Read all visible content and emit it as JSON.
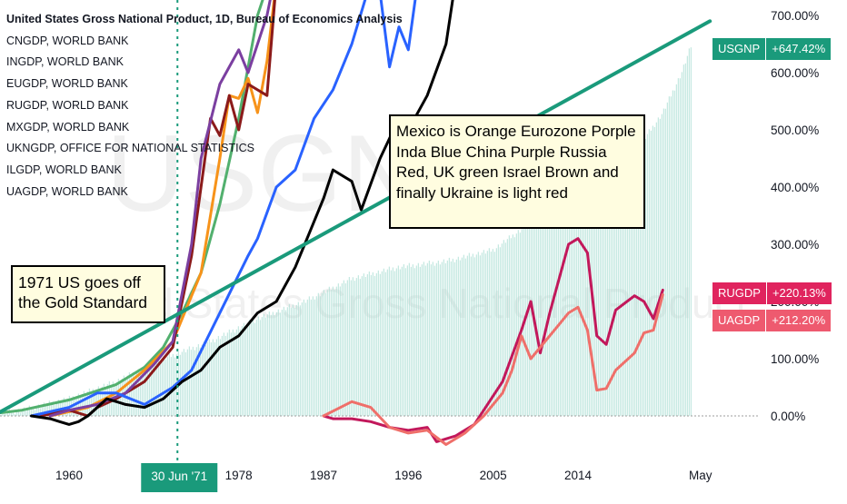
{
  "chart_data": {
    "type": "line",
    "title": "United States Gross National Product, 1D, Bureau of Economics Analysis",
    "legend_items": [
      "CNGDP, WORLD BANK",
      "INGDP, WORLD BANK",
      "EUGDP, WORLD BANK",
      "RUGDP, WORLD BANK",
      "MXGDP, WORLD BANK",
      "UKNGDP, OFFICE FOR NATIONAL STATISTICS",
      "ILGDP, WORLD BANK",
      "UAGDP, WORLD BANK"
    ],
    "legend_placement": "top-left",
    "watermark": "USGNP",
    "watermark2": "United States Gross National Product",
    "x_range": [
      1950,
      2031
    ],
    "y_range": [
      -75,
      750
    ],
    "y_ticks": [
      {
        "value": 0,
        "label": "0.00%"
      },
      {
        "value": 100,
        "label": "100.00%"
      },
      {
        "value": 200,
        "label": "200.00%"
      },
      {
        "value": 300,
        "label": "300.00%"
      },
      {
        "value": 400,
        "label": "400.00%"
      },
      {
        "value": 500,
        "label": "500.00%"
      },
      {
        "value": 600,
        "label": "600.00%"
      },
      {
        "value": 700,
        "label": "700.00%"
      }
    ],
    "x_ticks": [
      {
        "value": 1960,
        "label": "1960"
      },
      {
        "value": 1978,
        "label": "1978"
      },
      {
        "value": 1987,
        "label": "1987"
      },
      {
        "value": 1996,
        "label": "1996"
      },
      {
        "value": 2005,
        "label": "2005"
      },
      {
        "value": 2014,
        "label": "2014"
      },
      {
        "value": 2027,
        "label": "May"
      }
    ],
    "crosshair": {
      "x": 1971.5,
      "label": "30 Jun '71"
    },
    "annotations": [
      {
        "id": "note1",
        "text": "1971  US goes off\nthe Gold Standard"
      },
      {
        "id": "note2",
        "text": "Mexico is Orange Eurozone Porple\nInda Blue  China Purple Russia\nRed, UK green Israel Brown and\nfinally Ukraine is light red"
      }
    ],
    "trendline": {
      "color": "#1a9a7b",
      "points": [
        [
          1950,
          -3
        ],
        [
          2028,
          690
        ]
      ]
    },
    "badges": [
      {
        "name": "USGNP",
        "value": "+647.42%",
        "color": "#1a9a7b",
        "y": 647.42
      },
      {
        "name": "RUGDP",
        "value": "+220.13%",
        "color": "#e0245e",
        "y": 220.13
      },
      {
        "name": "UAGDP",
        "value": "+212.20%",
        "color": "#ee5a6f",
        "y": 175
      }
    ],
    "usgnp_area": {
      "color": "#9fd9cd",
      "points": [
        [
          1950,
          0
        ],
        [
          1955,
          10
        ],
        [
          1960,
          30
        ],
        [
          1965,
          60
        ],
        [
          1970,
          100
        ],
        [
          1975,
          130
        ],
        [
          1980,
          170
        ],
        [
          1985,
          200
        ],
        [
          1990,
          240
        ],
        [
          1995,
          260
        ],
        [
          2000,
          270
        ],
        [
          2005,
          290
        ],
        [
          2010,
          350
        ],
        [
          2015,
          400
        ],
        [
          2020,
          460
        ],
        [
          2023,
          530
        ],
        [
          2025,
          600
        ],
        [
          2026,
          647
        ]
      ]
    },
    "series": [
      {
        "name": "UKNGDP",
        "color": "#52b06e",
        "values": [
          [
            1950,
            0
          ],
          [
            1955,
            10
          ],
          [
            1960,
            28
          ],
          [
            1965,
            55
          ],
          [
            1968,
            85
          ],
          [
            1970,
            120
          ],
          [
            1972,
            180
          ],
          [
            1974,
            250
          ],
          [
            1976,
            370
          ],
          [
            1978,
            520
          ],
          [
            1980,
            700
          ],
          [
            1982,
            800
          ]
        ]
      },
      {
        "name": "MXGDP",
        "color": "#f7931a",
        "values": [
          [
            1958,
            0
          ],
          [
            1962,
            15
          ],
          [
            1965,
            40
          ],
          [
            1968,
            80
          ],
          [
            1971,
            130
          ],
          [
            1974,
            250
          ],
          [
            1976,
            450
          ],
          [
            1977,
            560
          ],
          [
            1978,
            555
          ],
          [
            1979,
            590
          ],
          [
            1980,
            530
          ],
          [
            1981,
            620
          ],
          [
            1982,
            760
          ]
        ]
      },
      {
        "name": "ILGDP",
        "color": "#8b1a1a",
        "values": [
          [
            1957,
            0
          ],
          [
            1960,
            10
          ],
          [
            1962,
            0
          ],
          [
            1963,
            15
          ],
          [
            1965,
            30
          ],
          [
            1968,
            60
          ],
          [
            1971,
            120
          ],
          [
            1973,
            280
          ],
          [
            1975,
            520
          ],
          [
            1976,
            490
          ],
          [
            1977,
            560
          ],
          [
            1978,
            500
          ],
          [
            1979,
            580
          ],
          [
            1981,
            560
          ],
          [
            1982,
            760
          ]
        ]
      },
      {
        "name": "CNGDP",
        "color": "#7b3fa0",
        "values": [
          [
            1958,
            0
          ],
          [
            1960,
            10
          ],
          [
            1963,
            20
          ],
          [
            1966,
            40
          ],
          [
            1969,
            90
          ],
          [
            1971,
            130
          ],
          [
            1973,
            300
          ],
          [
            1974,
            450
          ],
          [
            1976,
            580
          ],
          [
            1978,
            640
          ],
          [
            1979,
            600
          ],
          [
            1981,
            700
          ],
          [
            1982,
            780
          ]
        ]
      },
      {
        "name": "INGDP",
        "color": "#2962ff",
        "values": [
          [
            1956,
            0
          ],
          [
            1960,
            15
          ],
          [
            1963,
            40
          ],
          [
            1965,
            40
          ],
          [
            1968,
            20
          ],
          [
            1971,
            50
          ],
          [
            1973,
            80
          ],
          [
            1976,
            180
          ],
          [
            1979,
            280
          ],
          [
            1980,
            310
          ],
          [
            1982,
            400
          ],
          [
            1984,
            430
          ],
          [
            1986,
            520
          ],
          [
            1988,
            570
          ],
          [
            1990,
            650
          ],
          [
            1992,
            760
          ],
          [
            1993,
            740
          ],
          [
            1994,
            610
          ],
          [
            1995,
            680
          ],
          [
            1996,
            640
          ],
          [
            1997,
            760
          ]
        ]
      },
      {
        "name": "EUGDP",
        "color": "#000000",
        "values": [
          [
            1956,
            0
          ],
          [
            1958,
            -5
          ],
          [
            1959,
            -10
          ],
          [
            1960,
            -15
          ],
          [
            1961,
            -10
          ],
          [
            1962,
            0
          ],
          [
            1964,
            30
          ],
          [
            1966,
            20
          ],
          [
            1968,
            15
          ],
          [
            1970,
            30
          ],
          [
            1972,
            60
          ],
          [
            1974,
            80
          ],
          [
            1976,
            120
          ],
          [
            1978,
            140
          ],
          [
            1980,
            180
          ],
          [
            1982,
            200
          ],
          [
            1984,
            260
          ],
          [
            1985,
            300
          ],
          [
            1987,
            380
          ],
          [
            1988,
            430
          ],
          [
            1990,
            410
          ],
          [
            1991,
            360
          ],
          [
            1993,
            450
          ],
          [
            1995,
            520
          ],
          [
            1996,
            500
          ],
          [
            1998,
            560
          ],
          [
            2000,
            650
          ],
          [
            2001,
            760
          ]
        ]
      },
      {
        "name": "RUGDP",
        "color": "#c2185b",
        "values": [
          [
            1987,
            0
          ],
          [
            1988,
            -5
          ],
          [
            1990,
            -5
          ],
          [
            1992,
            -10
          ],
          [
            1994,
            -20
          ],
          [
            1996,
            -25
          ],
          [
            1998,
            -20
          ],
          [
            1999,
            -45
          ],
          [
            2001,
            -35
          ],
          [
            2003,
            -15
          ],
          [
            2004,
            10
          ],
          [
            2006,
            60
          ],
          [
            2008,
            150
          ],
          [
            2009,
            200
          ],
          [
            2010,
            110
          ],
          [
            2011,
            180
          ],
          [
            2013,
            300
          ],
          [
            2014,
            310
          ],
          [
            2015,
            285
          ],
          [
            2016,
            140
          ],
          [
            2017,
            125
          ],
          [
            2018,
            185
          ],
          [
            2020,
            210
          ],
          [
            2021,
            200
          ],
          [
            2022,
            170
          ],
          [
            2023,
            220
          ]
        ]
      },
      {
        "name": "UAGDP",
        "color": "#ef6f6a",
        "values": [
          [
            1987,
            0
          ],
          [
            1990,
            25
          ],
          [
            1992,
            15
          ],
          [
            1994,
            -20
          ],
          [
            1996,
            -30
          ],
          [
            1998,
            -25
          ],
          [
            2000,
            -50
          ],
          [
            2002,
            -30
          ],
          [
            2004,
            0
          ],
          [
            2006,
            40
          ],
          [
            2007,
            80
          ],
          [
            2008,
            140
          ],
          [
            2009,
            100
          ],
          [
            2012,
            160
          ],
          [
            2013,
            180
          ],
          [
            2014,
            190
          ],
          [
            2015,
            150
          ],
          [
            2016,
            45
          ],
          [
            2017,
            48
          ],
          [
            2018,
            80
          ],
          [
            2020,
            110
          ],
          [
            2021,
            145
          ],
          [
            2022,
            150
          ],
          [
            2023,
            212
          ]
        ]
      }
    ]
  }
}
